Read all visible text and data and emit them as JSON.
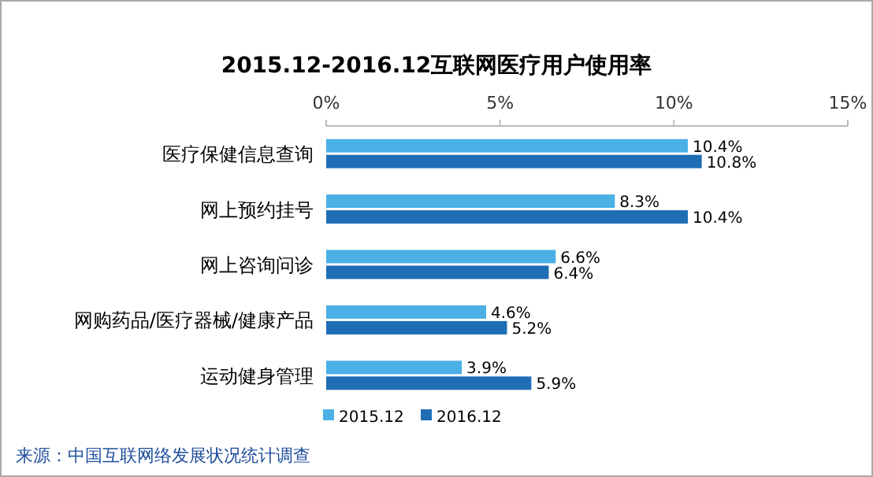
{
  "chart_data": {
    "type": "bar",
    "orientation": "horizontal",
    "title": "2015.12-2016.12互联网医疗用户使用率",
    "categories": [
      "医疗保健信息查询",
      "网上预约挂号",
      "网上咨询问诊",
      "网购药品/医疗器械/健康产品",
      "运动健身管理"
    ],
    "series": [
      {
        "name": "2015.12",
        "color": "#4bb0e6",
        "values": [
          10.4,
          8.3,
          6.6,
          4.6,
          3.9
        ],
        "value_labels": [
          "10.4%",
          "8.3%",
          "6.6%",
          "4.6%",
          "3.9%"
        ]
      },
      {
        "name": "2016.12",
        "color": "#1f6db5",
        "values": [
          10.8,
          10.4,
          6.4,
          5.2,
          5.9
        ],
        "value_labels": [
          "10.8%",
          "10.4%",
          "6.4%",
          "5.2%",
          "5.9%"
        ]
      }
    ],
    "xlim": [
      0,
      15
    ],
    "xticks": [
      {
        "value": 0,
        "label": "0%"
      },
      {
        "value": 5,
        "label": "5%"
      },
      {
        "value": 10,
        "label": "10%"
      },
      {
        "value": 15,
        "label": "15%"
      }
    ],
    "legend": "bottom left",
    "annotations": [
      "来源：中国互联网络发展状况统计调查"
    ]
  }
}
